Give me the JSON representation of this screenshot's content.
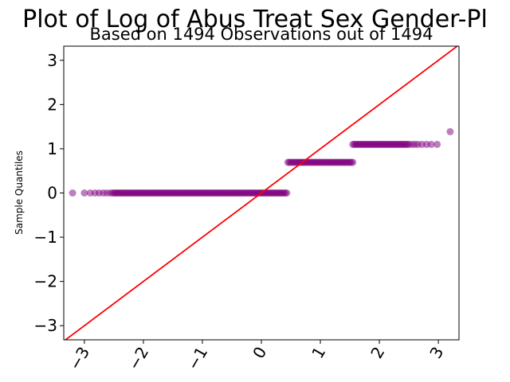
{
  "chart_data": {
    "type": "scatter",
    "title": "Plot of Log of Abus Treat Sex Gender-Pl",
    "subtitle": "Based on 1494 Observations out of 1494",
    "xlabel": "",
    "ylabel": "Sample Quantiles",
    "xlim": [
      -3.35,
      3.35
    ],
    "ylim": [
      -3.32,
      3.32
    ],
    "x_ticks": [
      -3,
      -2,
      -1,
      0,
      1,
      2,
      3
    ],
    "x_tick_labels": [
      "−3",
      "−2",
      "−1",
      "0",
      "1",
      "2",
      "3"
    ],
    "y_ticks": [
      -3,
      -2,
      -1,
      0,
      1,
      2,
      3
    ],
    "y_tick_labels": [
      "−3",
      "−2",
      "−1",
      "0",
      "1",
      "2",
      "3"
    ],
    "grid": false,
    "legend": "none",
    "point_color": "#800080",
    "line_color": "#ff0000",
    "reference_line": {
      "slope": 1,
      "intercept": 0
    },
    "clusters": [
      {
        "y": 0.0,
        "x_from": -3.2,
        "x_to": 0.45,
        "points": [
          -3.2,
          -3.0,
          -2.9,
          -2.82,
          -2.75,
          -2.68,
          -2.62,
          -2.56
        ]
      },
      {
        "y": 0.693,
        "x_from": 0.45,
        "x_to": 1.55,
        "points": []
      },
      {
        "y": 1.099,
        "x_from": 1.55,
        "x_to": 2.98,
        "points": [
          2.55,
          2.6,
          2.65,
          2.72,
          2.8,
          2.88,
          2.98
        ]
      },
      {
        "y": 1.386,
        "x_from": 3.2,
        "x_to": 3.2,
        "points": [
          3.2
        ]
      }
    ]
  }
}
